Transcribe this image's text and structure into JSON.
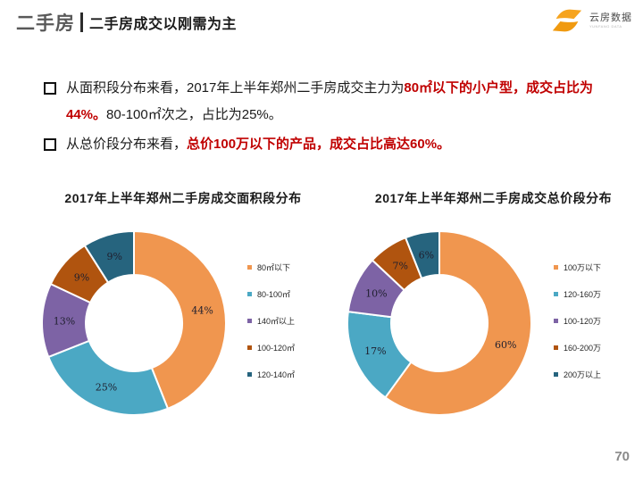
{
  "header": {
    "section_label": "二手房",
    "title": "二手房成交以刚需为主",
    "logo": {
      "name": "云房数据",
      "subtitle": "YUNFANG DATA",
      "color": "#F6A41F"
    }
  },
  "bullets": [
    {
      "segments": [
        {
          "style": "normal",
          "text": "从面积段分布来看，2017年上半年郑州二手房成交主力为"
        },
        {
          "style": "red",
          "text": "80㎡以下的小户型，成交占比为44%。"
        },
        {
          "style": "normal",
          "text": "80-100㎡次之，占比为25%。"
        }
      ]
    },
    {
      "segments": [
        {
          "style": "normal",
          "text": "从总价段分布来看，"
        },
        {
          "style": "red",
          "text": "总价100万以下的产品，成交占比高达60%。"
        }
      ]
    }
  ],
  "chart_data": [
    {
      "type": "pie",
      "subtype": "donut",
      "title": "2017年上半年郑州二手房成交面积段分布",
      "labels": [
        "80㎡以下",
        "80-100㎡",
        "140㎡以上",
        "100-120㎡",
        "120-140㎡"
      ],
      "values": [
        44,
        25,
        13,
        9,
        9
      ],
      "value_labels": [
        "44%",
        "25%",
        "13%",
        "9%",
        "9%"
      ],
      "colors": [
        "#F0964F",
        "#4BA8C4",
        "#7D63A5",
        "#B0540F",
        "#26647E"
      ],
      "start_angle_deg": 0,
      "direction": "clockwise",
      "legend_position": "right"
    },
    {
      "type": "pie",
      "subtype": "donut",
      "title": "2017年上半年郑州二手房成交总价段分布",
      "labels": [
        "100万以下",
        "120-160万",
        "100-120万",
        "160-200万",
        "200万以上"
      ],
      "values": [
        60,
        17,
        10,
        7,
        6
      ],
      "value_labels": [
        "60%",
        "17%",
        "10%",
        "7%",
        "6%"
      ],
      "colors": [
        "#F0964F",
        "#4BA8C4",
        "#7D63A5",
        "#B0540F",
        "#26647E"
      ],
      "start_angle_deg": 0,
      "direction": "clockwise",
      "legend_position": "right"
    }
  ],
  "footer": {
    "page_number": "70"
  }
}
